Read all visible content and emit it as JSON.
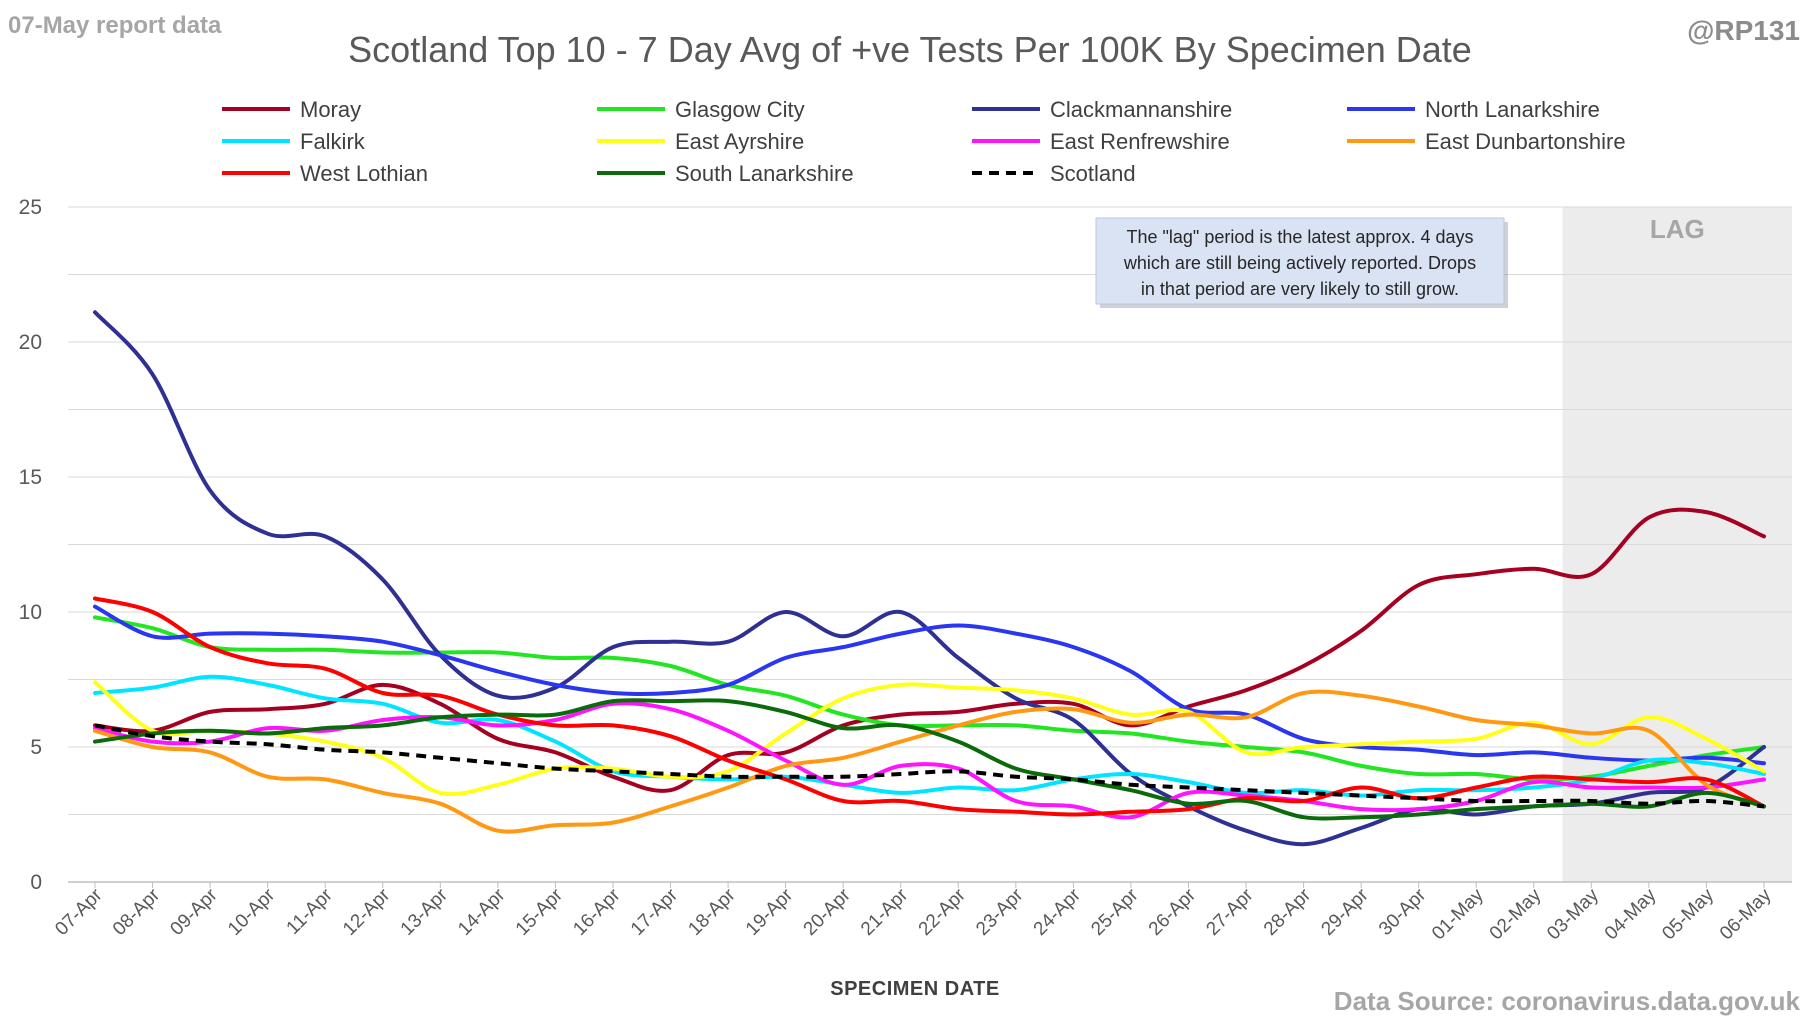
{
  "header": {
    "report_label": "07-May report data",
    "handle": "@RP131",
    "source": "Data Source: coronavirus.data.gov.uk"
  },
  "chart_data": {
    "type": "line",
    "title": "Scotland Top 10 - 7 Day Avg of +ve Tests Per 100K By Specimen Date",
    "xlabel": "SPECIMEN DATE",
    "ylabel": "",
    "ylim": [
      0,
      25
    ],
    "yticks": [
      0,
      5,
      10,
      15,
      20,
      25
    ],
    "grid": true,
    "legend_position": "top",
    "categories": [
      "07-Apr",
      "08-Apr",
      "09-Apr",
      "10-Apr",
      "11-Apr",
      "12-Apr",
      "13-Apr",
      "14-Apr",
      "15-Apr",
      "16-Apr",
      "17-Apr",
      "18-Apr",
      "19-Apr",
      "20-Apr",
      "21-Apr",
      "22-Apr",
      "23-Apr",
      "24-Apr",
      "25-Apr",
      "26-Apr",
      "27-Apr",
      "28-Apr",
      "29-Apr",
      "30-Apr",
      "01-May",
      "02-May",
      "03-May",
      "04-May",
      "05-May",
      "06-May"
    ],
    "lag": {
      "label": "LAG",
      "from": "02-May",
      "to": "06-May"
    },
    "annotation": {
      "lines": [
        "The \"lag\" period is the latest approx. 4 days",
        "which are still being actively reported.  Drops",
        "in that period are very likely to still grow."
      ]
    },
    "series": [
      {
        "name": "Moray",
        "color": "#a50021",
        "dashed": false,
        "values": [
          5.8,
          5.6,
          6.3,
          6.4,
          6.6,
          7.3,
          6.6,
          5.3,
          4.8,
          3.9,
          3.4,
          4.7,
          4.8,
          5.8,
          6.2,
          6.3,
          6.6,
          6.6,
          5.8,
          6.5,
          7.1,
          8.0,
          9.3,
          11.0,
          11.4,
          11.6,
          11.4,
          13.5,
          13.7,
          12.8
        ]
      },
      {
        "name": "Glasgow City",
        "color": "#22e622",
        "dashed": false,
        "values": [
          9.8,
          9.4,
          8.7,
          8.6,
          8.6,
          8.5,
          8.5,
          8.5,
          8.3,
          8.3,
          8.0,
          7.3,
          6.9,
          6.2,
          5.8,
          5.8,
          5.8,
          5.6,
          5.5,
          5.2,
          5.0,
          4.8,
          4.3,
          4.0,
          4.0,
          3.8,
          3.9,
          4.3,
          4.7,
          5.0
        ]
      },
      {
        "name": "Clackmannanshire",
        "color": "#2e3192",
        "dashed": false,
        "values": [
          21.1,
          18.8,
          14.5,
          12.9,
          12.8,
          11.2,
          8.4,
          6.9,
          7.2,
          8.7,
          8.9,
          8.9,
          10.0,
          9.1,
          10.0,
          8.3,
          6.8,
          6.0,
          4.0,
          2.8,
          1.9,
          1.4,
          2.0,
          2.7,
          2.5,
          2.8,
          2.9,
          3.3,
          3.5,
          5.0
        ]
      },
      {
        "name": "North Lanarkshire",
        "color": "#2b36f0",
        "dashed": false,
        "values": [
          10.2,
          9.1,
          9.2,
          9.2,
          9.1,
          8.9,
          8.4,
          7.8,
          7.3,
          7.0,
          7.0,
          7.3,
          8.3,
          8.7,
          9.2,
          9.5,
          9.2,
          8.7,
          7.8,
          6.4,
          6.2,
          5.3,
          5.0,
          4.9,
          4.7,
          4.8,
          4.6,
          4.5,
          4.6,
          4.4
        ]
      },
      {
        "name": "Falkirk",
        "color": "#00e5ff",
        "dashed": false,
        "values": [
          7.0,
          7.2,
          7.6,
          7.3,
          6.8,
          6.6,
          5.9,
          6.0,
          5.2,
          4.1,
          3.9,
          3.8,
          3.9,
          3.6,
          3.3,
          3.5,
          3.4,
          3.8,
          4.0,
          3.7,
          3.3,
          3.4,
          3.2,
          3.4,
          3.4,
          3.5,
          3.8,
          4.5,
          4.4,
          4.0
        ]
      },
      {
        "name": "East Ayrshire",
        "color": "#ffff1a",
        "dashed": false,
        "values": [
          7.4,
          5.6,
          5.6,
          5.5,
          5.2,
          4.6,
          3.3,
          3.6,
          4.2,
          4.2,
          3.9,
          4.1,
          5.5,
          6.8,
          7.3,
          7.2,
          7.1,
          6.8,
          6.2,
          6.3,
          4.8,
          5.0,
          5.1,
          5.2,
          5.3,
          5.9,
          5.1,
          6.1,
          5.3,
          4.1
        ]
      },
      {
        "name": "East Renfrewshire",
        "color": "#ff14ff",
        "dashed": false,
        "values": [
          5.7,
          5.2,
          5.2,
          5.7,
          5.6,
          6.0,
          6.1,
          5.8,
          6.0,
          6.6,
          6.4,
          5.6,
          4.5,
          3.6,
          4.3,
          4.2,
          3.0,
          2.8,
          2.4,
          3.3,
          3.2,
          3.0,
          2.7,
          2.7,
          3.0,
          3.7,
          3.5,
          3.5,
          3.5,
          3.8
        ]
      },
      {
        "name": "East Dunbartonshire",
        "color": "#ff9914",
        "dashed": false,
        "values": [
          5.6,
          5.0,
          4.8,
          3.9,
          3.8,
          3.3,
          2.9,
          1.9,
          2.1,
          2.2,
          2.8,
          3.5,
          4.3,
          4.6,
          5.2,
          5.8,
          6.3,
          6.4,
          5.9,
          6.2,
          6.1,
          7.0,
          6.9,
          6.5,
          6.0,
          5.8,
          5.5,
          5.6,
          3.6,
          2.8
        ]
      },
      {
        "name": "West Lothian",
        "color": "#ff0000",
        "dashed": false,
        "values": [
          10.5,
          10.0,
          8.7,
          8.1,
          7.9,
          7.0,
          6.9,
          6.2,
          5.8,
          5.8,
          5.4,
          4.5,
          3.8,
          3.0,
          3.0,
          2.7,
          2.6,
          2.5,
          2.6,
          2.7,
          3.1,
          3.0,
          3.5,
          3.1,
          3.5,
          3.9,
          3.8,
          3.7,
          3.8,
          2.8
        ]
      },
      {
        "name": "South Lanarkshire",
        "color": "#0b6b0b",
        "dashed": false,
        "values": [
          5.2,
          5.5,
          5.6,
          5.5,
          5.7,
          5.8,
          6.1,
          6.2,
          6.2,
          6.7,
          6.7,
          6.7,
          6.3,
          5.7,
          5.8,
          5.2,
          4.2,
          3.8,
          3.4,
          2.9,
          3.0,
          2.4,
          2.4,
          2.5,
          2.7,
          2.8,
          2.9,
          2.8,
          3.3,
          2.8
        ]
      },
      {
        "name": "Scotland",
        "color": "#000000",
        "dashed": true,
        "values": [
          5.8,
          5.4,
          5.2,
          5.1,
          4.9,
          4.8,
          4.6,
          4.4,
          4.2,
          4.1,
          4.0,
          3.9,
          3.9,
          3.9,
          4.0,
          4.1,
          3.9,
          3.8,
          3.6,
          3.5,
          3.4,
          3.3,
          3.2,
          3.1,
          3.0,
          3.0,
          3.0,
          2.9,
          3.0,
          2.8
        ]
      }
    ]
  }
}
